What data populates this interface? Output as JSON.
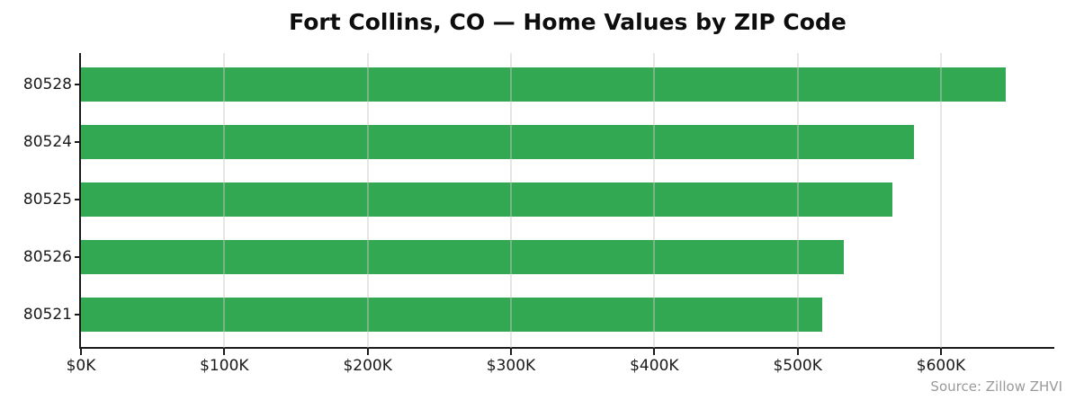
{
  "colors": {
    "bar": "#33a852",
    "grid": "#c8c8c8",
    "axis": "#1a1a1a",
    "title_text": "#0d0d0d",
    "tick_text": "#1a1a1a",
    "source_text": "#9a9a9a",
    "background": "#ffffff"
  },
  "source": {
    "caption": "Source: Zillow ZHVI"
  },
  "chart_data": {
    "type": "bar",
    "orientation": "horizontal",
    "title": "Fort Collins, CO — Home Values by ZIP Code",
    "categories": [
      "80528",
      "80524",
      "80525",
      "80526",
      "80521"
    ],
    "values": [
      645000,
      581000,
      566000,
      532000,
      517000
    ],
    "xlabel": "",
    "ylabel": "",
    "xlim": [
      0,
      679000
    ],
    "xticks": [
      0,
      100000,
      200000,
      300000,
      400000,
      500000,
      600000
    ],
    "xtick_labels": [
      "$0K",
      "$100K",
      "$200K",
      "$300K",
      "$400K",
      "$500K",
      "$600K"
    ],
    "grid": true,
    "grid_axis": "x",
    "grid_on_top": true,
    "legend": false,
    "annotation": "Source: Zillow ZHVI"
  }
}
